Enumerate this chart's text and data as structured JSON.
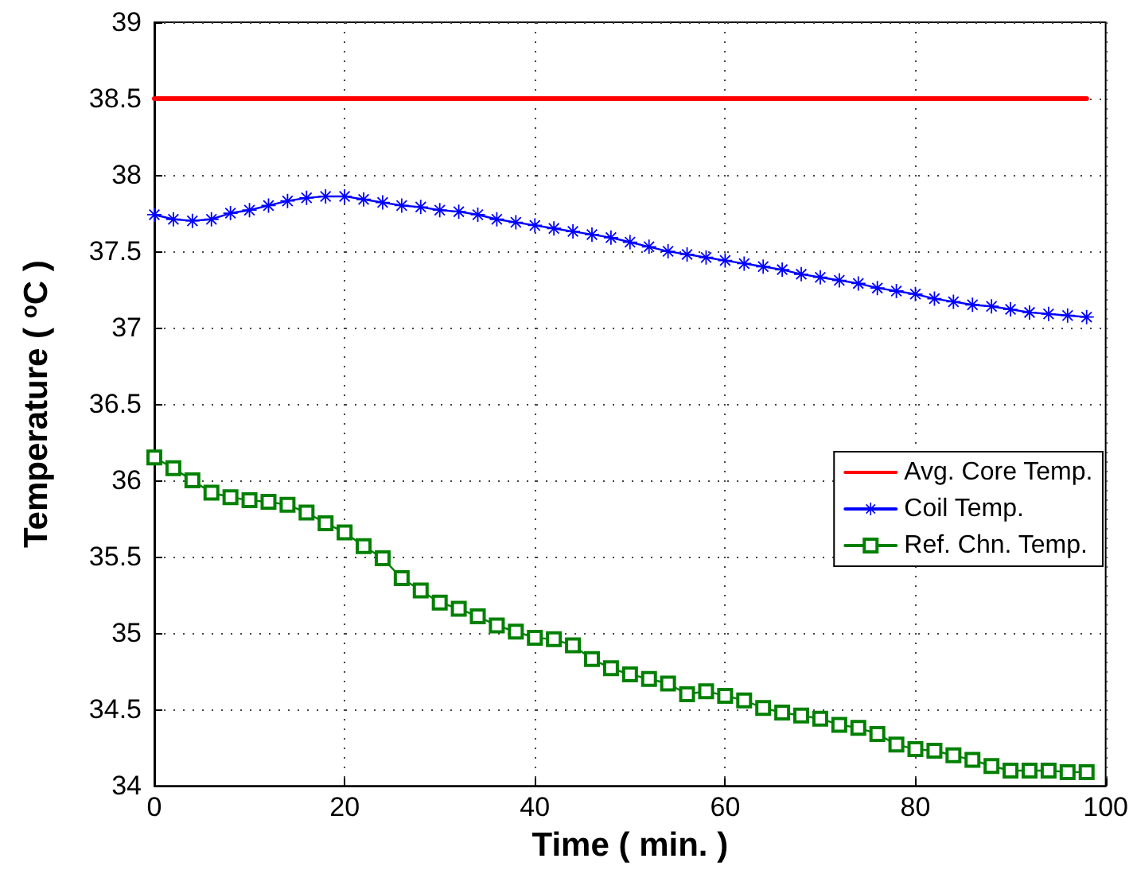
{
  "chart_data": {
    "type": "line",
    "xlabel": "Time ( min. )",
    "ylabel": "Temperature ( $^{o}$C )",
    "x": [
      0,
      2,
      4,
      6,
      8,
      10,
      12,
      14,
      16,
      18,
      20,
      22,
      24,
      26,
      28,
      30,
      32,
      34,
      36,
      38,
      40,
      42,
      44,
      46,
      48,
      50,
      52,
      54,
      56,
      58,
      60,
      62,
      64,
      66,
      68,
      70,
      72,
      74,
      76,
      78,
      80,
      82,
      84,
      86,
      88,
      90,
      92,
      94,
      96,
      98
    ],
    "series": [
      {
        "name": "Avg. Core Temp.",
        "color": "#ff0000",
        "marker": "none",
        "values": [
          38.5,
          38.5,
          38.5,
          38.5,
          38.5,
          38.5,
          38.5,
          38.5,
          38.5,
          38.5,
          38.5,
          38.5,
          38.5,
          38.5,
          38.5,
          38.5,
          38.5,
          38.5,
          38.5,
          38.5,
          38.5,
          38.5,
          38.5,
          38.5,
          38.5,
          38.5,
          38.5,
          38.5,
          38.5,
          38.5,
          38.5,
          38.5,
          38.5,
          38.5,
          38.5,
          38.5,
          38.5,
          38.5,
          38.5,
          38.5,
          38.5,
          38.5,
          38.5,
          38.5,
          38.5,
          38.5,
          38.5,
          38.5,
          38.5,
          38.5
        ]
      },
      {
        "name": "Coil Temp.",
        "color": "#0000ff",
        "marker": "star",
        "values": [
          37.74,
          37.71,
          37.7,
          37.71,
          37.75,
          37.77,
          37.8,
          37.83,
          37.85,
          37.86,
          37.86,
          37.84,
          37.82,
          37.8,
          37.79,
          37.77,
          37.76,
          37.74,
          37.71,
          37.69,
          37.67,
          37.65,
          37.63,
          37.61,
          37.59,
          37.56,
          37.53,
          37.5,
          37.48,
          37.46,
          37.44,
          37.42,
          37.4,
          37.38,
          37.35,
          37.33,
          37.31,
          37.29,
          37.26,
          37.24,
          37.22,
          37.19,
          37.17,
          37.15,
          37.14,
          37.12,
          37.1,
          37.09,
          37.08,
          37.07
        ]
      },
      {
        "name": "Ref. Chn. Temp.",
        "color": "#008000",
        "marker": "square",
        "values": [
          36.15,
          36.08,
          36.0,
          35.92,
          35.89,
          35.87,
          35.86,
          35.84,
          35.79,
          35.72,
          35.66,
          35.57,
          35.49,
          35.36,
          35.28,
          35.2,
          35.16,
          35.11,
          35.05,
          35.01,
          34.97,
          34.96,
          34.92,
          34.83,
          34.77,
          34.73,
          34.7,
          34.67,
          34.6,
          34.62,
          34.59,
          34.56,
          34.51,
          34.48,
          34.46,
          34.44,
          34.4,
          34.38,
          34.34,
          34.27,
          34.24,
          34.23,
          34.2,
          34.17,
          34.13,
          34.1,
          34.1,
          34.1,
          34.09,
          34.09
        ]
      }
    ],
    "xlim": [
      0,
      100
    ],
    "xticks": [
      0,
      20,
      40,
      60,
      80,
      100
    ],
    "ylim": [
      34,
      39
    ],
    "yticks": [
      34,
      34.5,
      35,
      35.5,
      36,
      36.5,
      37,
      37.5,
      38,
      38.5,
      39
    ],
    "grid": true,
    "legend": "right",
    "line_style": "solid"
  }
}
